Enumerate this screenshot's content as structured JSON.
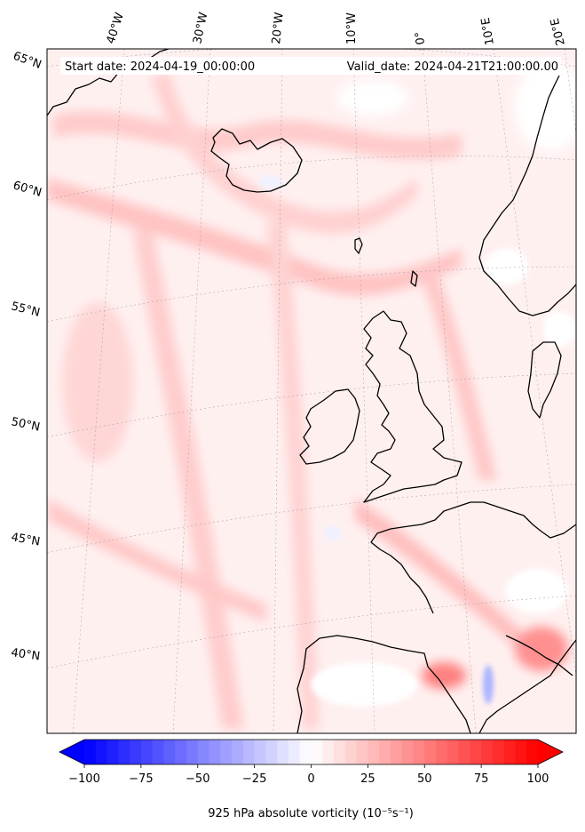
{
  "header": {
    "start_date": "Start date: 2024-04-19_00:00:00",
    "valid_date": "Valid_date: 2024-04-21T21:00:00.00"
  },
  "longitude_labels": [
    "40°W",
    "30°W",
    "20°W",
    "10°W",
    "0°",
    "10°E",
    "20°E"
  ],
  "latitude_labels": [
    "65°N",
    "60°N",
    "55°N",
    "50°N",
    "45°N",
    "40°N"
  ],
  "colorbar": {
    "title": "925 hPa absolute vorticity (10⁻⁵s⁻¹)",
    "tick_labels": [
      "−100",
      "−75",
      "−50",
      "−25",
      "0",
      "25",
      "50",
      "75",
      "100"
    ],
    "ticks": [
      -100,
      -75,
      -50,
      -25,
      0,
      25,
      50,
      75,
      100
    ],
    "range": [
      -100,
      100
    ],
    "extend": "both",
    "colormap": "bwr",
    "levels": 40
  },
  "colors": {
    "background": "#fff0f0",
    "coastline": "#000000",
    "gridline": "#9a9a9a"
  }
}
